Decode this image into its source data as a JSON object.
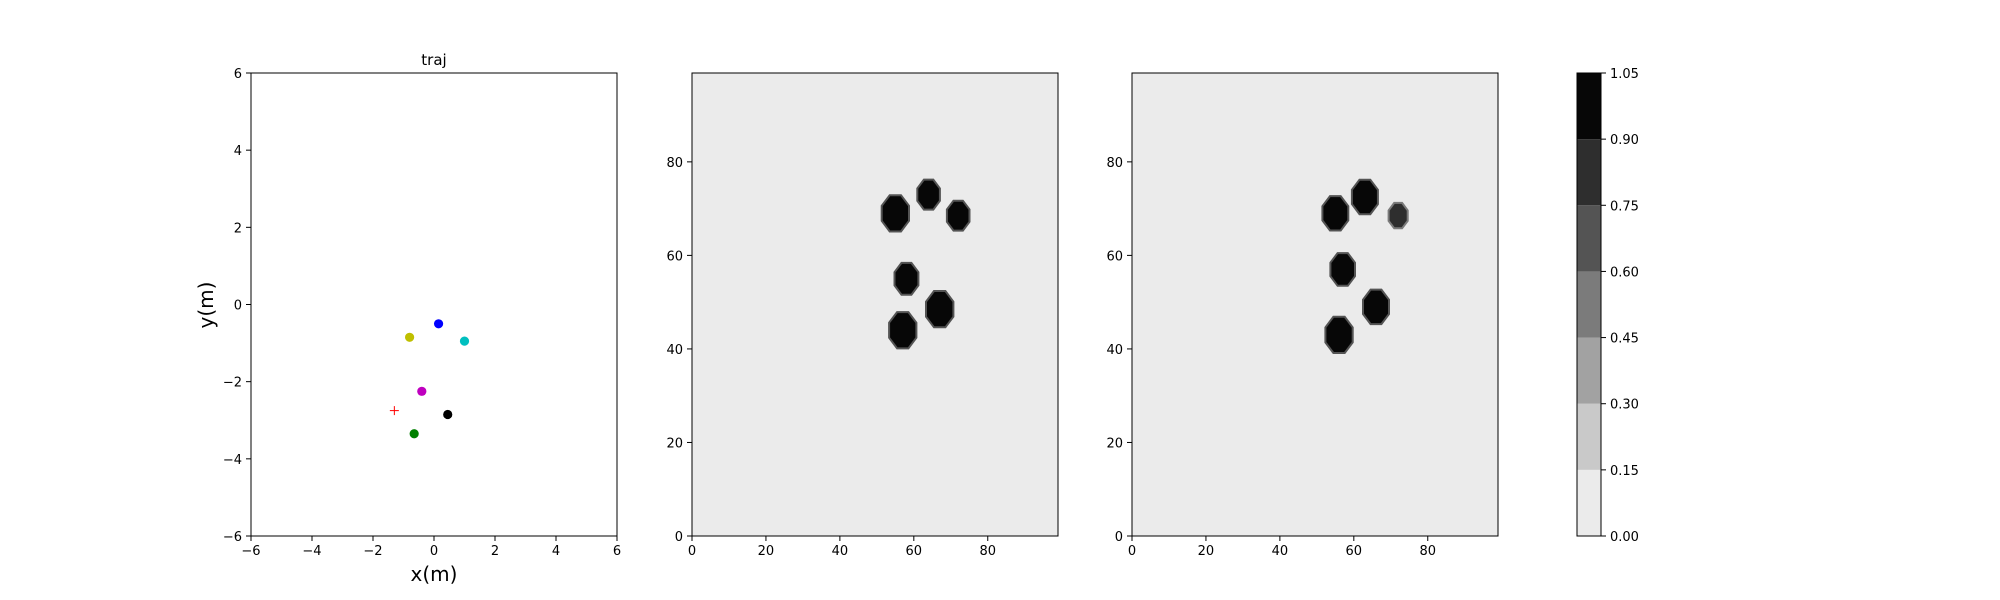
{
  "chart_data": [
    {
      "type": "scatter",
      "title": "traj",
      "xlabel": "x(m)",
      "ylabel": "y(m)",
      "xlim": [
        -6,
        6
      ],
      "ylim": [
        -6,
        6
      ],
      "xticks": [
        -6,
        -4,
        -2,
        0,
        2,
        4,
        6
      ],
      "yticks": [
        -6,
        -4,
        -2,
        0,
        2,
        4,
        6
      ],
      "grid": false,
      "points": [
        {
          "x": 0.15,
          "y": -0.5,
          "color": "#0000ff",
          "marker": "circle"
        },
        {
          "x": -0.8,
          "y": -0.85,
          "color": "#bfbf00",
          "marker": "circle"
        },
        {
          "x": 1.0,
          "y": -0.95,
          "color": "#00bfbf",
          "marker": "circle"
        },
        {
          "x": -0.4,
          "y": -2.25,
          "color": "#bf00bf",
          "marker": "circle"
        },
        {
          "x": 0.45,
          "y": -2.85,
          "color": "#000000",
          "marker": "circle"
        },
        {
          "x": -0.65,
          "y": -3.35,
          "color": "#008000",
          "marker": "circle"
        },
        {
          "x": -1.3,
          "y": -2.75,
          "color": "#ff0000",
          "marker": "plus"
        }
      ]
    },
    {
      "type": "heatmap",
      "title": "",
      "xlim": [
        0,
        99
      ],
      "ylim": [
        0,
        99
      ],
      "xticks": [
        0,
        20,
        40,
        60,
        80
      ],
      "yticks": [
        0,
        20,
        40,
        60,
        80
      ],
      "background_level": 0.0,
      "blobs": [
        {
          "cx": 55,
          "cy": 69,
          "r": 4.0,
          "level": 1.0
        },
        {
          "cx": 64,
          "cy": 73,
          "r": 3.3,
          "level": 1.0
        },
        {
          "cx": 72,
          "cy": 68.5,
          "r": 3.3,
          "level": 1.0
        },
        {
          "cx": 58,
          "cy": 55,
          "r": 3.5,
          "level": 1.0
        },
        {
          "cx": 67,
          "cy": 48.5,
          "r": 4.0,
          "level": 1.0
        },
        {
          "cx": 57,
          "cy": 44,
          "r": 4.0,
          "level": 1.0
        }
      ]
    },
    {
      "type": "heatmap",
      "title": "",
      "xlim": [
        0,
        99
      ],
      "ylim": [
        0,
        99
      ],
      "xticks": [
        0,
        20,
        40,
        60,
        80
      ],
      "yticks": [
        0,
        20,
        40,
        60,
        80
      ],
      "background_level": 0.0,
      "blobs": [
        {
          "cx": 55,
          "cy": 69,
          "r": 3.8,
          "level": 1.0
        },
        {
          "cx": 63,
          "cy": 72.5,
          "r": 3.8,
          "level": 1.0
        },
        {
          "cx": 72,
          "cy": 68.5,
          "r": 2.8,
          "level": 0.75
        },
        {
          "cx": 57,
          "cy": 57,
          "r": 3.6,
          "level": 1.0
        },
        {
          "cx": 66,
          "cy": 49,
          "r": 3.8,
          "level": 1.0
        },
        {
          "cx": 56,
          "cy": 43,
          "r": 4.0,
          "level": 1.0
        }
      ]
    },
    {
      "type": "colorbar",
      "levels": [
        0.0,
        0.15,
        0.3,
        0.45,
        0.6,
        0.75,
        0.9,
        1.05
      ],
      "tick_labels": [
        "0.00",
        "0.15",
        "0.30",
        "0.45",
        "0.60",
        "0.75",
        "0.90",
        "1.05"
      ],
      "colors": [
        "#ebebeb",
        "#c9c9c9",
        "#a2a2a2",
        "#7b7b7b",
        "#545454",
        "#2e2e2e",
        "#070707"
      ]
    }
  ]
}
